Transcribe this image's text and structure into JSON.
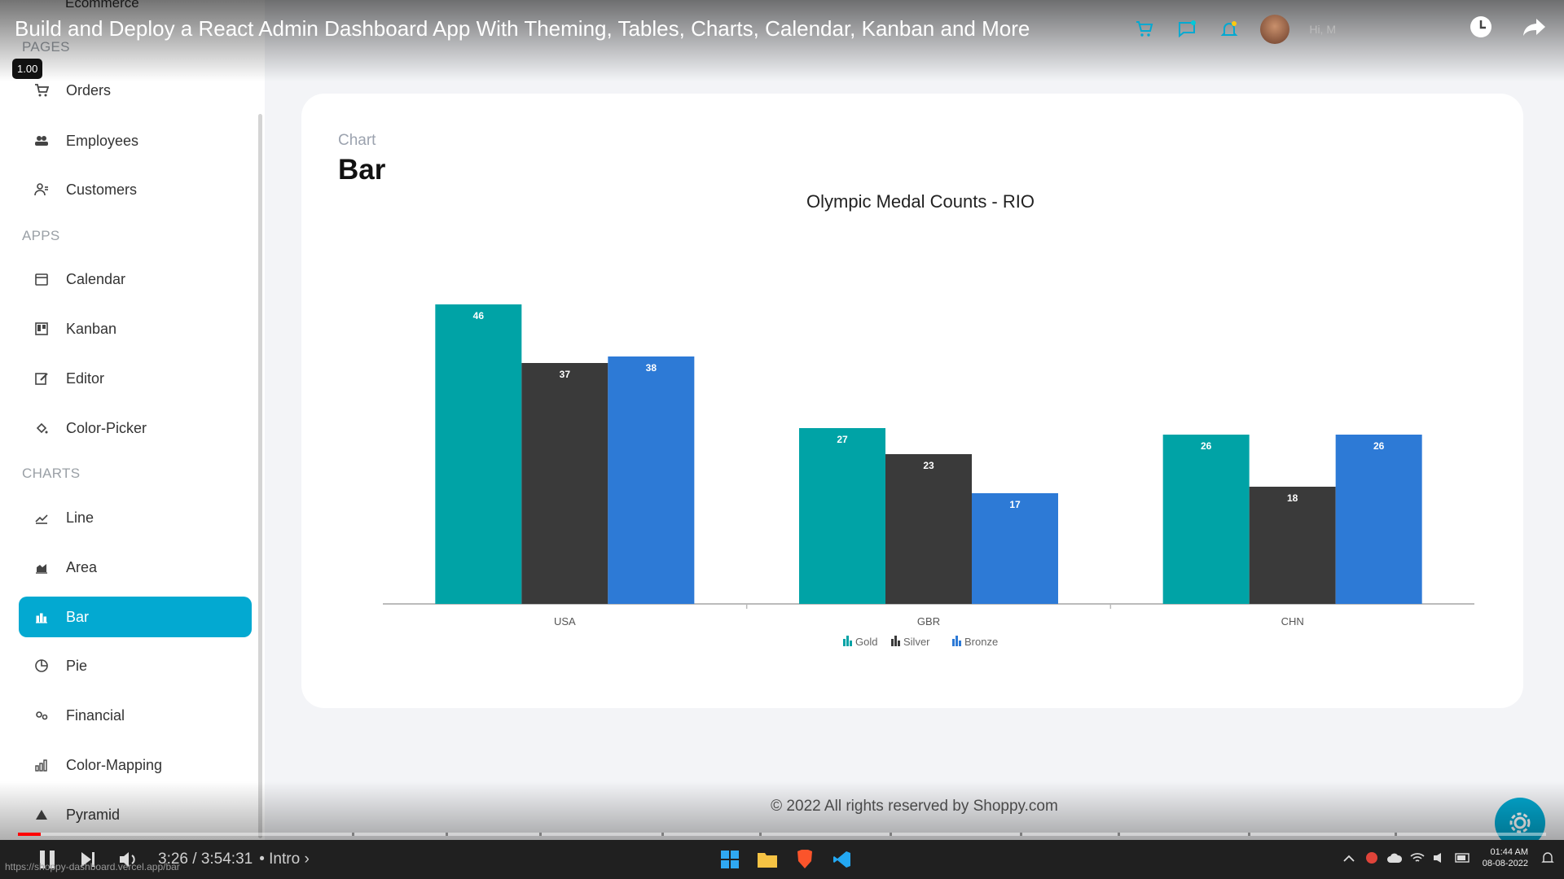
{
  "video": {
    "title": "Build and Deploy a React Admin Dashboard App With Theming, Tables, Charts, Calendar, Kanban and More",
    "speed": "1.00",
    "time": "3:26 / 3:54:31",
    "chapter": "• Intro ›",
    "url": "https://shoppy-dashboard.vercel.app/bar",
    "progress_fraction": 0.015,
    "greeting": "Hi, M"
  },
  "sidebar": {
    "ecommerce_label": "Ecommerce",
    "pages_heading": "PAGES",
    "apps_heading": "APPS",
    "charts_heading": "CHARTS",
    "items": [
      {
        "label": "Orders",
        "icon": "cart-icon"
      },
      {
        "label": "Employees",
        "icon": "employees-icon"
      },
      {
        "label": "Customers",
        "icon": "customers-icon"
      },
      {
        "label": "Calendar",
        "icon": "calendar-icon"
      },
      {
        "label": "Kanban",
        "icon": "kanban-icon"
      },
      {
        "label": "Editor",
        "icon": "edit-icon"
      },
      {
        "label": "Color-Picker",
        "icon": "paint-icon"
      },
      {
        "label": "Line",
        "icon": "line-chart-icon"
      },
      {
        "label": "Area",
        "icon": "area-chart-icon"
      },
      {
        "label": "Bar",
        "icon": "bar-chart-icon",
        "active": true
      },
      {
        "label": "Pie",
        "icon": "pie-chart-icon"
      },
      {
        "label": "Financial",
        "icon": "financial-icon"
      },
      {
        "label": "Color-Mapping",
        "icon": "color-mapping-icon"
      },
      {
        "label": "Pyramid",
        "icon": "pyramid-icon"
      }
    ]
  },
  "page": {
    "category": "Chart",
    "title": "Bar",
    "footer": "© 2022 All rights reserved by Shoppy.com"
  },
  "colors": {
    "accent": "#03a9d1",
    "gold": "#00a3a6",
    "silver": "#3a3a3a",
    "bronze": "#2d7ad6"
  },
  "taskbar": {
    "clock_time": "01:44 AM",
    "clock_date": "08-08-2022"
  },
  "chart_data": {
    "type": "bar",
    "title": "Olympic Medal Counts - RIO",
    "categories": [
      "USA",
      "GBR",
      "CHN"
    ],
    "series": [
      {
        "name": "Gold",
        "values": [
          46,
          27,
          26
        ]
      },
      {
        "name": "Silver",
        "values": [
          37,
          23,
          18
        ]
      },
      {
        "name": "Bronze",
        "values": [
          38,
          17,
          26
        ]
      }
    ],
    "ylim": [
      0,
      60
    ],
    "grid": false,
    "legend": "bottom-center",
    "data_labels": true
  }
}
